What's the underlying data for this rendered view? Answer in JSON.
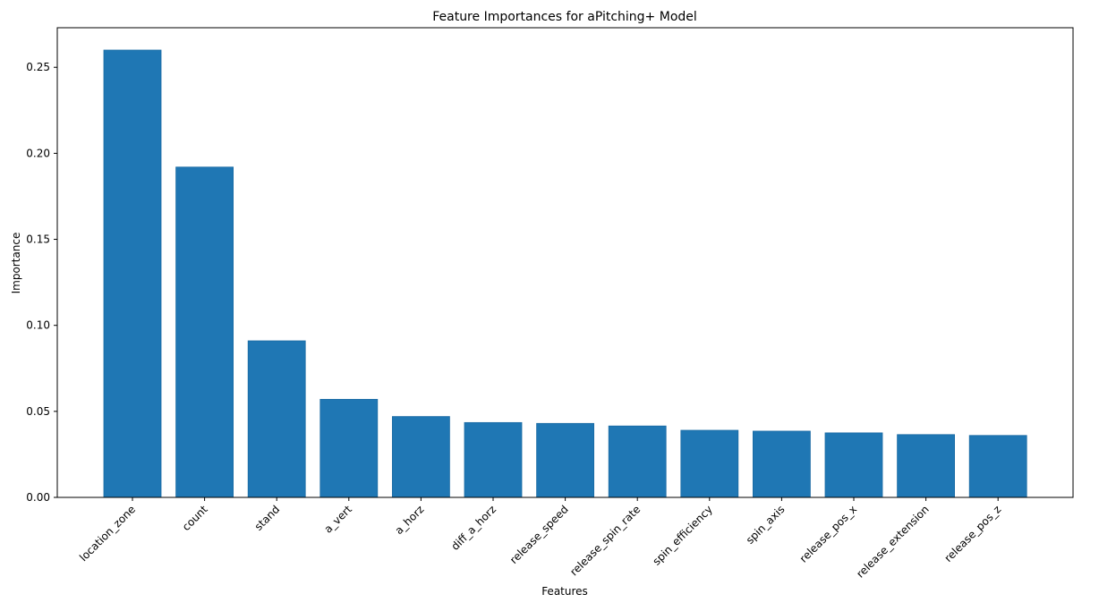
{
  "chart_data": {
    "type": "bar",
    "title": "Feature Importances for aPitching+ Model",
    "xlabel": "Features",
    "ylabel": "Importance",
    "categories": [
      "location_zone",
      "count",
      "stand",
      "a_vert",
      "a_horz",
      "diff_a_horz",
      "release_speed",
      "release_spin_rate",
      "spin_efficiency",
      "spin_axis",
      "release_pos_x",
      "release_extension",
      "release_pos_z"
    ],
    "values": [
      0.26,
      0.192,
      0.091,
      0.057,
      0.047,
      0.0435,
      0.043,
      0.0415,
      0.039,
      0.0385,
      0.0375,
      0.0365,
      0.036
    ],
    "ylim": [
      0,
      0.273
    ],
    "yticks": [
      "0.00",
      "0.05",
      "0.10",
      "0.15",
      "0.20",
      "0.25"
    ],
    "grid": false,
    "bar_color": "#1f77b4"
  }
}
